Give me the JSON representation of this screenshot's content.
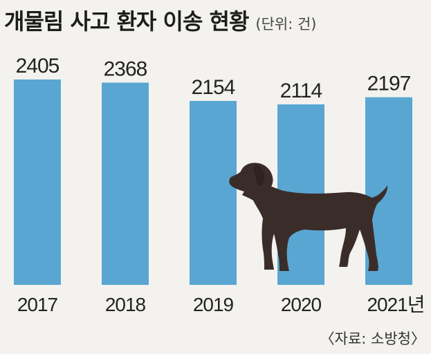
{
  "header": {
    "title": "개물림 사고 환자 이송 현황",
    "unit": "(단위: 건)"
  },
  "source": "〈자료: 소방청〉",
  "colors": {
    "bar": "#5aa6d2",
    "background": "#f3f2ee",
    "dog": "#3a2d29"
  },
  "illustration": "dog-silhouette",
  "chart_data": {
    "type": "bar",
    "categories": [
      "2017",
      "2018",
      "2019",
      "2020",
      "2021년"
    ],
    "values": [
      2405,
      2368,
      2154,
      2114,
      2197
    ],
    "title": "개물림 사고 환자 이송 현황",
    "xlabel": "",
    "ylabel": "",
    "grid": false,
    "legend": "none"
  }
}
